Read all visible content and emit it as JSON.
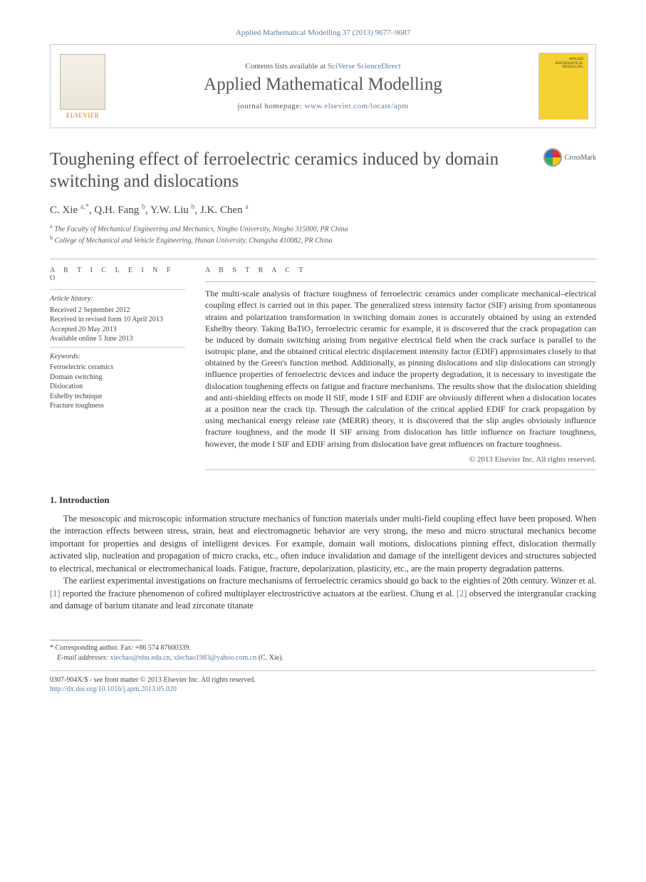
{
  "journal_ref": "Applied Mathematical Modelling 37 (2013) 9677–9687",
  "header": {
    "contents_prefix": "Contents lists available at ",
    "contents_link": "SciVerse ScienceDirect",
    "journal_title": "Applied Mathematical Modelling",
    "homepage_prefix": "journal homepage: ",
    "homepage_url": "www.elsevier.com/locate/apm",
    "publisher_label": "ELSEVIER",
    "cover_text": "APPLIED MATHEMATICAL MODELLING"
  },
  "crossmark_label": "CrossMark",
  "title": "Toughening effect of ferroelectric ceramics induced by domain switching and dislocations",
  "authors_html": "C. Xie <sup>a,*</sup>, Q.H. Fang <sup>b</sup>, Y.W. Liu <sup>b</sup>, J.K. Chen <sup>a</sup>",
  "affiliations": {
    "a": "The Faculty of Mechanical Engineering and Mechanics, Ningbo University, Ningbo 315000, PR China",
    "b": "College of Mechanical and Vehicle Engineering, Hunan University, Changsha 410082, PR China"
  },
  "info": {
    "heading": "A R T I C L E   I N F O",
    "history_label": "Article history:",
    "history": [
      "Received 2 September 2012",
      "Received in revised form 10 April 2013",
      "Accepted 20 May 2013",
      "Available online 5 June 2013"
    ],
    "keywords_label": "Keywords:",
    "keywords": [
      "Ferroelectric ceramics",
      "Domain switching",
      "Dislocation",
      "Eshelby technique",
      "Fracture toughness"
    ]
  },
  "abstract": {
    "heading": "A B S T R A C T",
    "body": "The multi-scale analysis of fracture toughness of ferroelectric ceramics under complicate mechanical–electrical coupling effect is carried out in this paper. The generalized stress intensity factor (SIF) arising from spontaneous strains and polarization transformation in switching domain zones is accurately obtained by using an extended Eshelby theory. Taking BaTiO₃ ferroelectric ceramic for example, it is discovered that the crack propagation can be induced by domain switching arising from negative electrical field when the crack surface is parallel to the isotropic plane, and the obtained critical electric displacement intensity factor (EDIF) approximates closely to that obtained by the Green's function method. Additionally, as pinning dislocations and slip dislocations can strongly influence properties of ferroelectric devices and induce the property degradation, it is necessary to investigate the dislocation toughening effects on fatigue and fracture mechanisms. The results show that the dislocation shielding and anti-shielding effects on mode II SIF, mode I SIF and EDIF are obviously different when a dislocation locates at a position near the crack tip. Through the calculation of the critical applied EDIF for crack propagation by using mechanical energy release rate (MERR) theory, it is discovered that the slip angles obviously influence fracture toughness, and the mode II SIF arising from dislocation has little influence on fracture toughness, however, the mode I SIF and EDIF arising from dislocation have great influences on fracture toughness.",
    "copyright": "© 2013 Elsevier Inc. All rights reserved."
  },
  "section1": {
    "heading": "1. Introduction",
    "p1": "The mesoscopic and microscopic information structure mechanics of function materials under multi-field coupling effect have been proposed. When the interaction effects between stress, strain, heat and electromagnetic behavior are very strong, the meso and micro structural mechanics become important for properties and designs of intelligent devices. For example, domain wall motions, dislocations pinning effect, dislocation thermally activated slip, nucleation and propagation of micro cracks, etc., often induce invalidation and damage of the intelligent devices and structures subjected to electrical, mechanical or electromechanical loads. Fatigue, fracture, depolarization, plasticity, etc., are the main property degradation patterns.",
    "p2_pre": "The earliest experimental investigations on fracture mechanisms of ferroelectric ceramics should go back to the eighties of 20th century. Winzer et al. ",
    "p2_ref1": "[1]",
    "p2_mid": " reported the fracture phenomenon of cofired multiplayer electrostrictive actuators at the earliest. Chung et al. ",
    "p2_ref2": "[2]",
    "p2_post": " observed the intergranular cracking and damage of barium titanate and lead zirconate titanate"
  },
  "footnotes": {
    "corr": "Corresponding author. Fax: +86 574 87600339.",
    "email_label": "E-mail addresses:",
    "email1": "xiechao@nbu.edu.cn",
    "email_sep": ", ",
    "email2": "xiechao1983@yahoo.com.cn",
    "author": " (C. Xie)."
  },
  "bottom": {
    "line1": "0307-904X/$ - see front matter © 2013 Elsevier Inc. All rights reserved.",
    "doi": "http://dx.doi.org/10.1016/j.apm.2013.05.020"
  },
  "colors": {
    "link": "#5b7aa0",
    "title_gray": "#505050",
    "text": "#333333",
    "cover_yellow": "#f4d030"
  }
}
